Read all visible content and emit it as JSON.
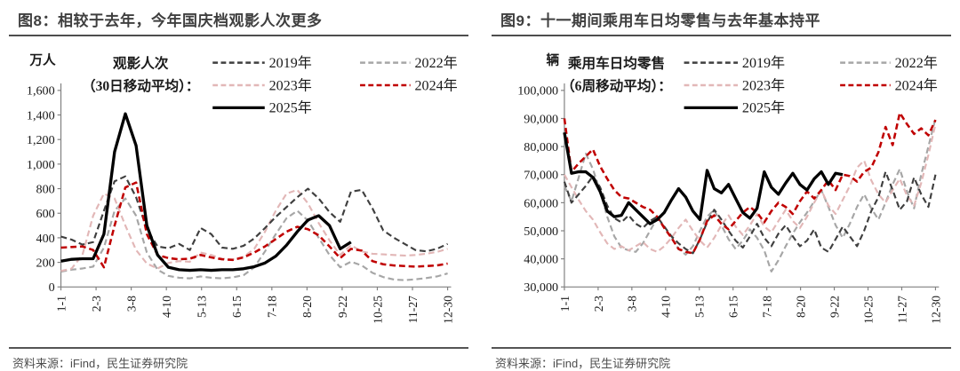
{
  "panels": [
    {
      "title": "图8：相较于去年，今年国庆档观影人次更多",
      "source": "资料来源：iFind，民生证券研究院"
    },
    {
      "title": "图9：十一期间乘用车日均零售与去年基本持平",
      "source": "资料来源：iFind，民生证券研究院"
    }
  ],
  "colors": {
    "series_2019": "#3f3f3f",
    "series_2022": "#a6a6a6",
    "series_2023": "#e2b7b7",
    "series_2024": "#c00000",
    "series_2025": "#000000",
    "title_text": "#3f3f3f",
    "rule": "#4d4d4d",
    "axis": "#808080",
    "source_text": "#4d4d4d"
  },
  "chart_data": [
    {
      "type": "line",
      "title": "观影人次（30日移动平均）：",
      "legend_title_lines": [
        "观影人次",
        "（30日移动平均）："
      ],
      "unit": "万人",
      "ylabel": "万人",
      "ylim": [
        0,
        1600
      ],
      "ystep": 200,
      "grid": false,
      "legend_position": "top",
      "x_categories": [
        "1-1",
        "2-3",
        "3-8",
        "4-10",
        "5-13",
        "6-15",
        "7-18",
        "8-20",
        "9-22",
        "10-25",
        "11-27",
        "12-30"
      ],
      "series": [
        {
          "name": "2019年",
          "color": "#3f3f3f",
          "dash": true,
          "values": [
            410,
            385,
            345,
            365,
            620,
            860,
            900,
            730,
            470,
            330,
            315,
            350,
            300,
            480,
            430,
            320,
            310,
            335,
            395,
            480,
            570,
            650,
            730,
            800,
            720,
            610,
            530,
            775,
            790,
            640,
            460,
            400,
            350,
            300,
            290,
            310,
            350
          ]
        },
        {
          "name": "2022年",
          "color": "#a6a6a6",
          "dash": true,
          "values": [
            125,
            140,
            150,
            165,
            320,
            620,
            720,
            580,
            280,
            140,
            90,
            75,
            70,
            85,
            75,
            70,
            78,
            95,
            160,
            290,
            430,
            560,
            620,
            540,
            400,
            260,
            160,
            205,
            175,
            115,
            80,
            60,
            55,
            62,
            72,
            85,
            110
          ]
        },
        {
          "name": "2023年",
          "color": "#e2b7b7",
          "dash": true,
          "values": [
            130,
            150,
            260,
            580,
            760,
            720,
            500,
            300,
            190,
            150,
            195,
            210,
            205,
            280,
            260,
            230,
            225,
            245,
            310,
            450,
            620,
            760,
            790,
            680,
            520,
            380,
            260,
            340,
            290,
            270,
            265,
            260,
            255,
            260,
            270,
            285,
            310
          ]
        },
        {
          "name": "2024年",
          "color": "#c00000",
          "dash": true,
          "values": [
            320,
            325,
            330,
            300,
            160,
            500,
            810,
            850,
            430,
            260,
            235,
            225,
            230,
            260,
            240,
            225,
            220,
            240,
            280,
            330,
            390,
            450,
            490,
            470,
            420,
            330,
            235,
            310,
            295,
            210,
            185,
            175,
            170,
            165,
            170,
            175,
            190
          ]
        },
        {
          "name": "2025年",
          "color": "#000000",
          "dash": false,
          "values": [
            210,
            225,
            230,
            230,
            430,
            1100,
            1410,
            1150,
            500,
            260,
            160,
            140,
            135,
            140,
            135,
            140,
            140,
            148,
            165,
            195,
            250,
            340,
            450,
            545,
            580,
            500,
            310,
            365,
            null,
            null,
            null,
            null,
            null,
            null,
            null,
            null,
            null
          ]
        }
      ]
    },
    {
      "type": "line",
      "title": "乘用车日均零售（6周移动平均）：",
      "legend_title_lines": [
        "乘用车日均零售",
        "（6周移动平均）："
      ],
      "unit": "辆",
      "ylabel": "辆",
      "ylim": [
        30000,
        100000
      ],
      "ystep": 10000,
      "grid": false,
      "legend_position": "top",
      "x_categories": [
        "1-1",
        "2-3",
        "3-8",
        "4-10",
        "5-13",
        "6-15",
        "7-18",
        "8-20",
        "9-22",
        "10-25",
        "11-27",
        "12-30"
      ],
      "series": [
        {
          "name": "2019年",
          "color": "#3f3f3f",
          "dash": true,
          "values": [
            67500,
            60000,
            63000,
            66000,
            69500,
            65500,
            59000,
            54500,
            53000,
            55500,
            52500,
            51000,
            53500,
            55000,
            51500,
            48000,
            45500,
            43500,
            42000,
            47000,
            53000,
            57500,
            54000,
            50000,
            46500,
            44000,
            48000,
            52500,
            47500,
            44500,
            49000,
            52000,
            48000,
            44500,
            46500,
            50500,
            44000,
            42500,
            47000,
            51500,
            48000,
            44500,
            50000,
            57000,
            62000,
            71000,
            64500,
            57500,
            60500,
            69000,
            63000,
            58500,
            70000
          ]
        },
        {
          "name": "2022年",
          "color": "#a6a6a6",
          "dash": true,
          "values": [
            66000,
            60500,
            69000,
            77500,
            72000,
            64000,
            55000,
            48000,
            44000,
            43000,
            42500,
            45500,
            50000,
            54500,
            51500,
            47500,
            43500,
            41500,
            44500,
            50000,
            55000,
            57500,
            52000,
            47000,
            43500,
            46500,
            50500,
            47500,
            43000,
            35500,
            39500,
            44500,
            49000,
            53000,
            56500,
            60500,
            64500,
            58500,
            52000,
            47500,
            52500,
            58500,
            63000,
            58000,
            54000,
            60000,
            66500,
            72000,
            64000,
            58000,
            70000,
            80000,
            90000
          ]
        },
        {
          "name": "2023年",
          "color": "#e2b7b7",
          "dash": true,
          "values": [
            70000,
            65500,
            61000,
            57000,
            54000,
            49500,
            45500,
            43500,
            44500,
            43000,
            44500,
            46000,
            43500,
            42500,
            44500,
            47500,
            51000,
            54000,
            50000,
            46500,
            44000,
            47500,
            52000,
            55500,
            51500,
            48500,
            52000,
            56000,
            51500,
            49500,
            53500,
            57500,
            53500,
            51000,
            55000,
            60000,
            64500,
            59000,
            56000,
            61000,
            66000,
            72500,
            75000,
            68000,
            63000,
            60000,
            64500,
            68500,
            62500,
            59000,
            67000,
            77000,
            88000
          ]
        },
        {
          "name": "2024年",
          "color": "#c00000",
          "dash": true,
          "values": [
            90000,
            71000,
            74000,
            76500,
            79000,
            73000,
            68500,
            64500,
            62000,
            61500,
            60000,
            58500,
            57500,
            55000,
            51000,
            47500,
            43500,
            42500,
            42000,
            47000,
            53500,
            55500,
            52500,
            50500,
            53500,
            56500,
            58500,
            56500,
            53000,
            57000,
            60000,
            58500,
            56000,
            60500,
            64000,
            61500,
            64500,
            68000,
            64500,
            70000,
            69500,
            67500,
            71000,
            72500,
            78000,
            87000,
            80500,
            92000,
            88000,
            84500,
            86500,
            84000,
            89500
          ]
        },
        {
          "name": "2025年",
          "color": "#000000",
          "dash": false,
          "values": [
            85000,
            70500,
            71000,
            71000,
            69000,
            64000,
            57000,
            55000,
            55500,
            60000,
            57500,
            55000,
            52500,
            54000,
            56500,
            61000,
            65000,
            62000,
            57000,
            54000,
            71500,
            65000,
            63500,
            66500,
            61500,
            56500,
            54500,
            58000,
            71000,
            65500,
            63000,
            67000,
            70500,
            66500,
            64500,
            68500,
            71000,
            66500,
            70500,
            70000,
            null,
            null,
            null,
            null,
            null,
            null,
            null,
            null,
            null,
            null,
            null,
            null,
            null
          ]
        }
      ]
    }
  ]
}
